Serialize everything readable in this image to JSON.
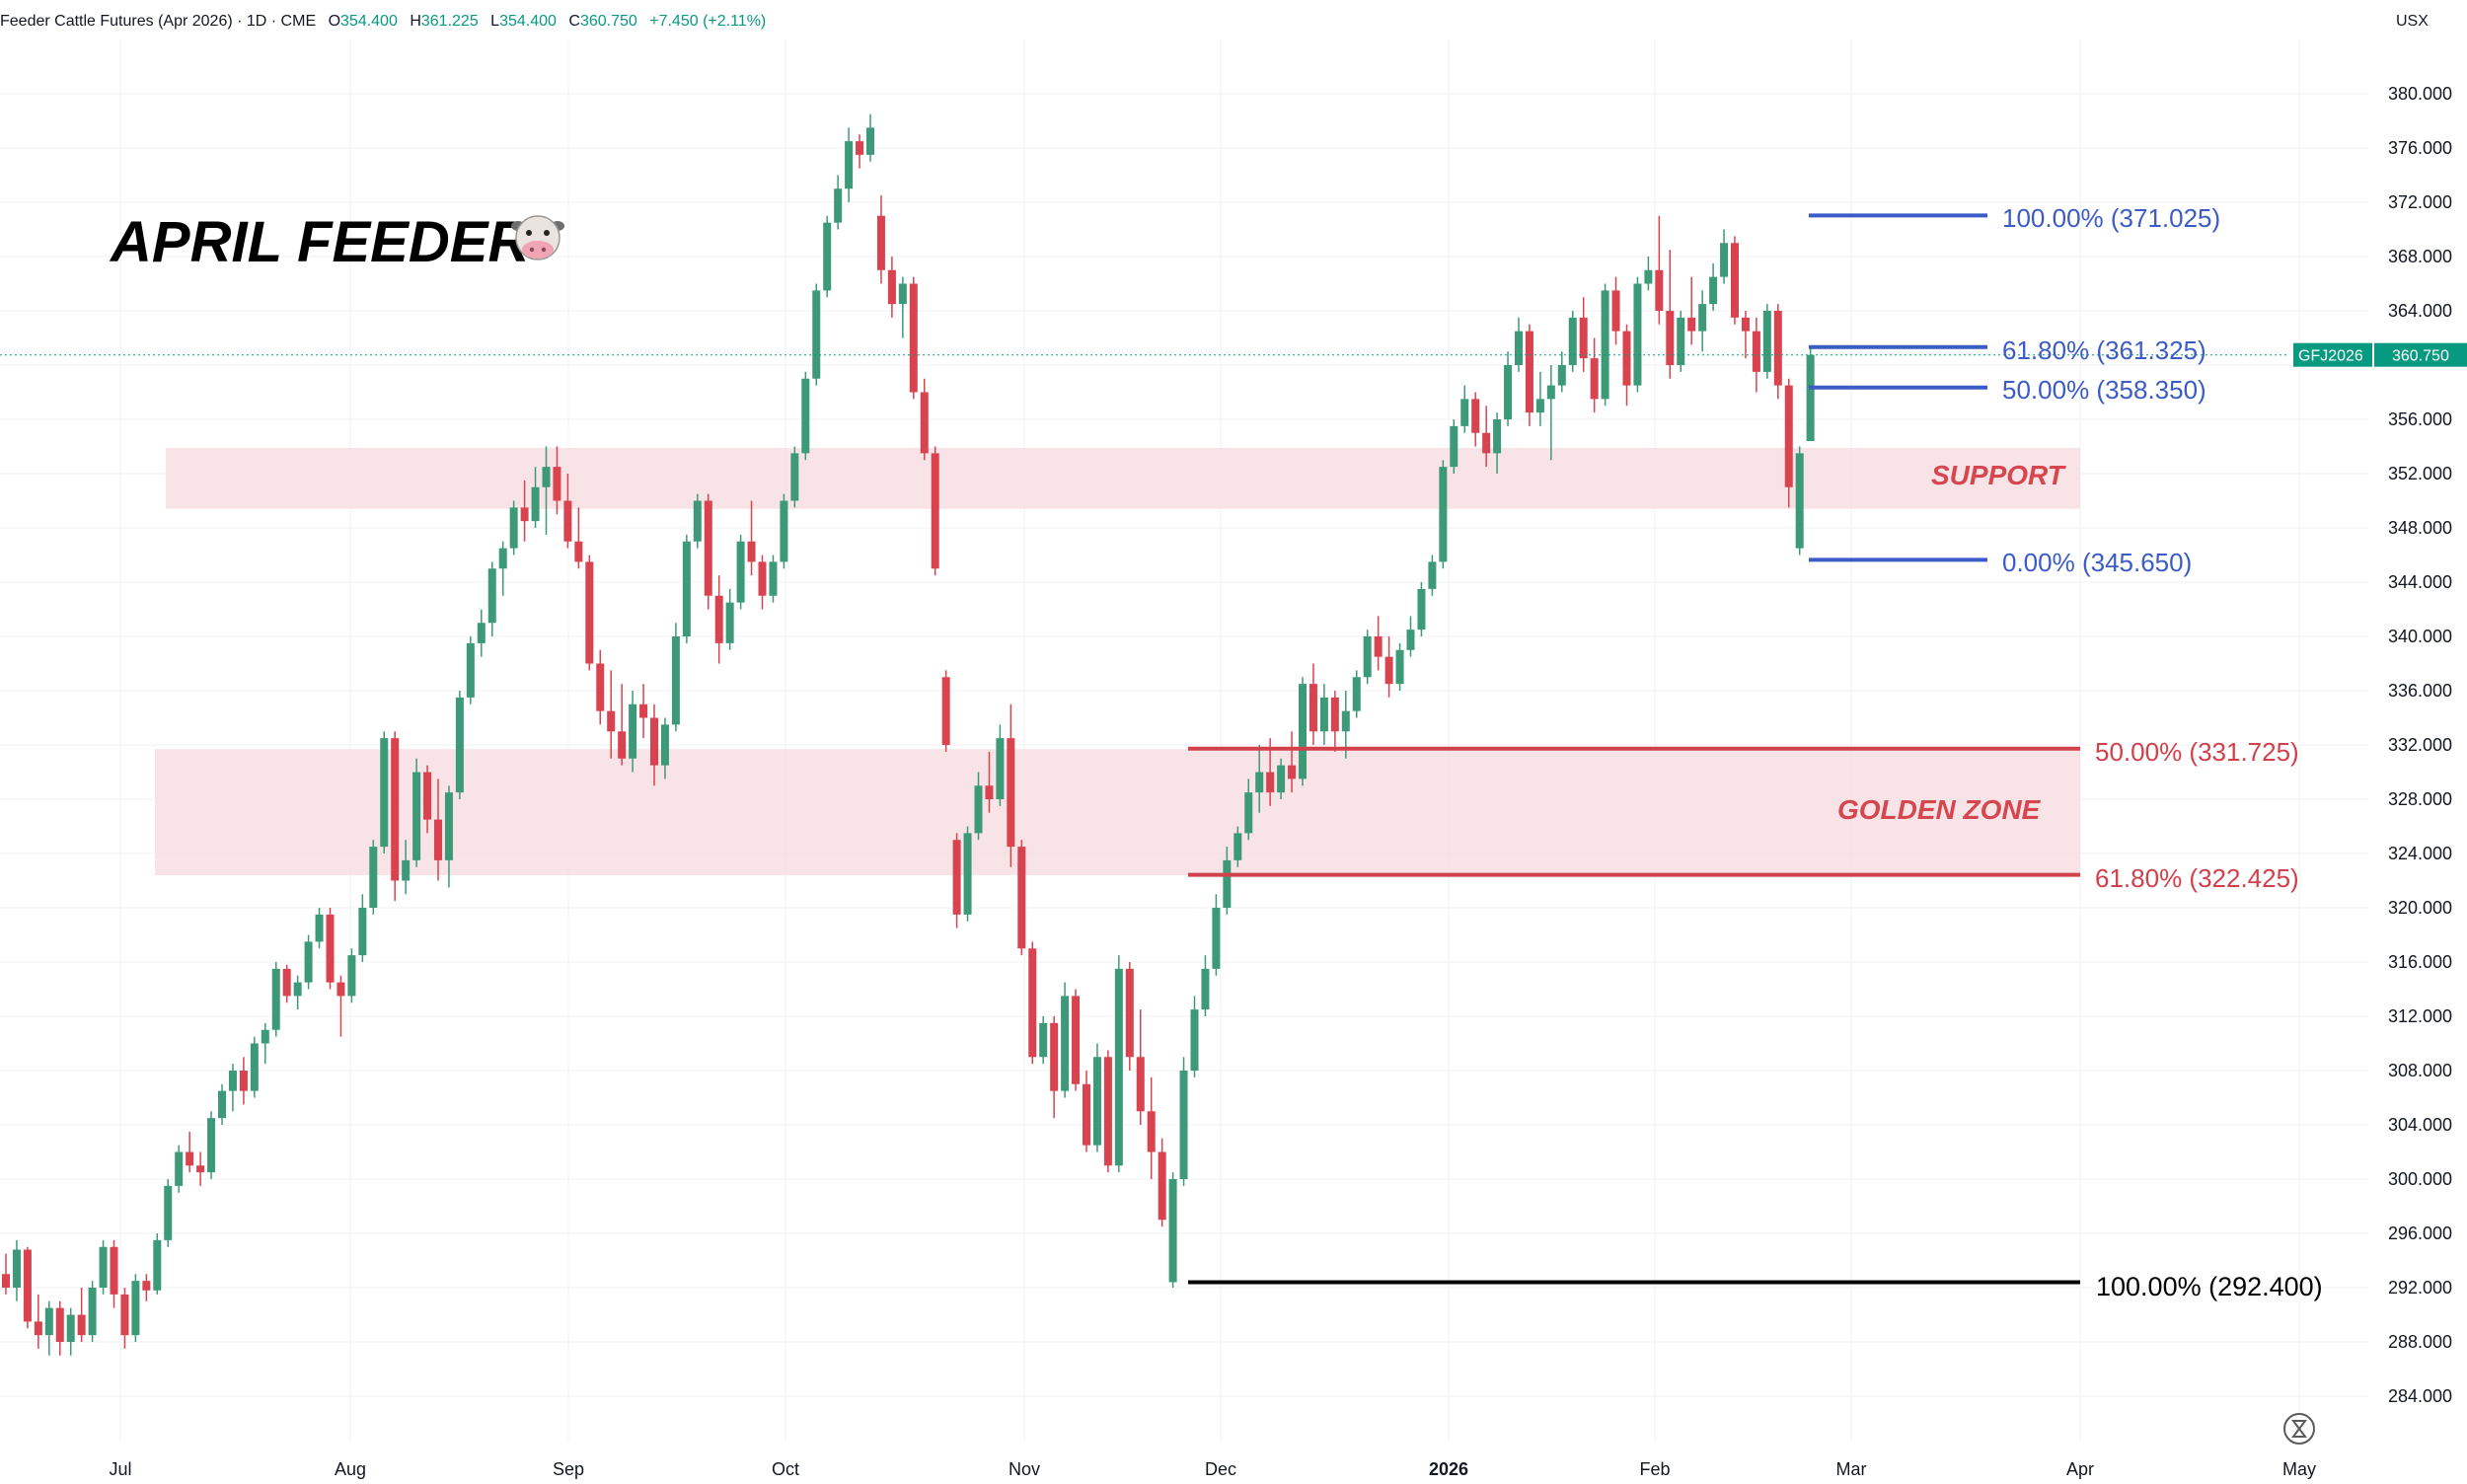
{
  "header": {
    "symbol_title": "Feeder Cattle Futures (Apr 2026) · 1D · CME",
    "o_label": "O",
    "o_value": "354.400",
    "h_label": "H",
    "h_value": "361.225",
    "l_label": "L",
    "l_value": "354.400",
    "c_label": "C",
    "c_value": "360.750",
    "change": "+7.450 (+2.11%)",
    "currency": "USX"
  },
  "title": "APRIL FEEDER",
  "title_emoji": "🐮",
  "price_badge": {
    "symbol": "GFJ2026",
    "value": "360.750",
    "price": 360.75
  },
  "colors": {
    "up": "#3c9a78",
    "down": "#d9434f",
    "fib_blue": "#3b5bc7",
    "fib_red": "#d1414b",
    "zone_fill": "#f7dfe2",
    "badge": "#089981"
  },
  "zones": {
    "support_label": "SUPPORT",
    "golden_label": "GOLDEN ZONE"
  },
  "fib_labels": {
    "b100": "100.00% (371.025)",
    "b618": "61.80% (361.325)",
    "b50": "50.00% (358.350)",
    "b0": "0.00% (345.650)",
    "r50": "50.00% (331.725)",
    "r618": "61.80% (322.425)",
    "k100": "100.00% (292.400)"
  },
  "chart_data": {
    "type": "candlestick",
    "title": "Feeder Cattle Futures (Apr 2026)",
    "ylim": [
      282,
      384
    ],
    "y_ticks": [
      "284.000",
      "288.000",
      "292.000",
      "296.000",
      "300.000",
      "304.000",
      "308.000",
      "312.000",
      "316.000",
      "320.000",
      "324.000",
      "328.000",
      "332.000",
      "336.000",
      "340.000",
      "344.000",
      "348.000",
      "352.000",
      "356.000",
      "364.000",
      "368.000",
      "372.000",
      "376.000",
      "380.000"
    ],
    "x_ticks": [
      "Jul",
      "Aug",
      "Sep",
      "Oct",
      "Nov",
      "Dec",
      "2026",
      "Feb",
      "Mar",
      "Apr",
      "May"
    ],
    "zones": [
      {
        "name": "SUPPORT",
        "from": 349.4,
        "to": 353.9
      },
      {
        "name": "GOLDEN ZONE",
        "from": 322.4,
        "to": 331.7
      }
    ],
    "fib_levels": [
      {
        "label": "100.00% (371.025)",
        "value": 371.025
      },
      {
        "label": "61.80% (361.325)",
        "value": 361.325
      },
      {
        "label": "50.00% (358.350)",
        "value": 358.35
      },
      {
        "label": "0.00% (345.650)",
        "value": 345.65
      },
      {
        "label": "50.00% (331.725)",
        "value": 331.725
      },
      {
        "label": "61.80% (322.425)",
        "value": 322.425
      },
      {
        "label": "100.00% (292.400)",
        "value": 292.4
      }
    ],
    "last_close": 360.75,
    "candles": [
      [
        293.0,
        294.5,
        291.5,
        292.0
      ],
      [
        292.0,
        295.5,
        291.0,
        294.8
      ],
      [
        294.8,
        295.0,
        289.0,
        289.5
      ],
      [
        289.5,
        291.5,
        287.5,
        288.5
      ],
      [
        288.5,
        291.0,
        287.0,
        290.5
      ],
      [
        290.5,
        291.0,
        287.0,
        288.0
      ],
      [
        288.0,
        290.5,
        287.0,
        290.0
      ],
      [
        290.0,
        292.0,
        288.0,
        288.5
      ],
      [
        288.5,
        292.5,
        288.0,
        292.0
      ],
      [
        292.0,
        295.5,
        291.5,
        295.0
      ],
      [
        295.0,
        295.5,
        290.5,
        291.5
      ],
      [
        291.5,
        292.0,
        287.5,
        288.5
      ],
      [
        288.5,
        293.0,
        288.0,
        292.5
      ],
      [
        292.5,
        293.0,
        291.0,
        291.8
      ],
      [
        291.8,
        296.0,
        291.5,
        295.5
      ],
      [
        295.5,
        300.0,
        295.0,
        299.5
      ],
      [
        299.5,
        302.5,
        299.0,
        302.0
      ],
      [
        302.0,
        303.5,
        300.5,
        301.0
      ],
      [
        301.0,
        302.0,
        299.5,
        300.5
      ],
      [
        300.5,
        305.0,
        300.0,
        304.5
      ],
      [
        304.5,
        307.0,
        304.0,
        306.5
      ],
      [
        306.5,
        308.5,
        305.0,
        308.0
      ],
      [
        308.0,
        309.0,
        305.5,
        306.5
      ],
      [
        306.5,
        310.5,
        306.0,
        310.0
      ],
      [
        310.0,
        311.5,
        308.5,
        311.0
      ],
      [
        311.0,
        316.0,
        310.5,
        315.5
      ],
      [
        315.5,
        315.8,
        313.0,
        313.5
      ],
      [
        313.5,
        315.0,
        312.5,
        314.5
      ],
      [
        314.5,
        318.0,
        314.0,
        317.5
      ],
      [
        317.5,
        320.0,
        317.0,
        319.5
      ],
      [
        319.5,
        320.0,
        314.0,
        314.5
      ],
      [
        314.5,
        315.0,
        310.5,
        313.5
      ],
      [
        313.5,
        317.0,
        313.0,
        316.5
      ],
      [
        316.5,
        321.0,
        316.0,
        320.0
      ],
      [
        320.0,
        325.0,
        319.5,
        324.5
      ],
      [
        324.5,
        333.0,
        324.0,
        332.5
      ],
      [
        332.5,
        333.0,
        320.5,
        322.0
      ],
      [
        322.0,
        325.0,
        321.0,
        323.5
      ],
      [
        323.5,
        331.0,
        323.0,
        330.0
      ],
      [
        330.0,
        330.5,
        325.5,
        326.5
      ],
      [
        326.5,
        329.5,
        322.0,
        323.5
      ],
      [
        323.5,
        329.0,
        321.5,
        328.5
      ],
      [
        328.5,
        336.0,
        328.0,
        335.5
      ],
      [
        335.5,
        340.0,
        335.0,
        339.5
      ],
      [
        339.5,
        342.0,
        338.5,
        341.0
      ],
      [
        341.0,
        345.5,
        340.0,
        345.0
      ],
      [
        345.0,
        347.0,
        343.0,
        346.5
      ],
      [
        346.5,
        350.0,
        346.0,
        349.5
      ],
      [
        349.5,
        351.5,
        347.0,
        348.5
      ],
      [
        348.5,
        352.5,
        348.0,
        351.0
      ],
      [
        351.0,
        354.0,
        347.5,
        352.5
      ],
      [
        352.5,
        354.0,
        349.0,
        350.0
      ],
      [
        350.0,
        352.0,
        346.5,
        347.0
      ],
      [
        347.0,
        349.5,
        345.0,
        345.5
      ],
      [
        345.5,
        346.0,
        337.5,
        338.0
      ],
      [
        338.0,
        339.0,
        333.5,
        334.5
      ],
      [
        334.5,
        337.5,
        331.0,
        333.0
      ],
      [
        333.0,
        336.5,
        330.5,
        331.0
      ],
      [
        331.0,
        336.0,
        330.0,
        335.0
      ],
      [
        335.0,
        336.5,
        332.5,
        334.0
      ],
      [
        334.0,
        335.0,
        329.0,
        330.5
      ],
      [
        330.5,
        334.0,
        329.5,
        333.5
      ],
      [
        333.5,
        341.0,
        333.0,
        340.0
      ],
      [
        340.0,
        347.5,
        339.5,
        347.0
      ],
      [
        347.0,
        350.5,
        346.5,
        350.0
      ],
      [
        350.0,
        350.5,
        342.0,
        343.0
      ],
      [
        343.0,
        344.5,
        338.0,
        339.5
      ],
      [
        339.5,
        343.5,
        339.0,
        342.5
      ],
      [
        342.5,
        347.5,
        342.0,
        347.0
      ],
      [
        347.0,
        350.0,
        344.5,
        345.5
      ],
      [
        345.5,
        346.0,
        342.0,
        343.0
      ],
      [
        343.0,
        346.0,
        342.5,
        345.5
      ],
      [
        345.5,
        350.5,
        345.0,
        350.0
      ],
      [
        350.0,
        354.0,
        349.5,
        353.5
      ],
      [
        353.5,
        359.5,
        353.0,
        359.0
      ],
      [
        359.0,
        366.0,
        358.5,
        365.5
      ],
      [
        365.5,
        371.0,
        365.0,
        370.5
      ],
      [
        370.5,
        374.0,
        370.0,
        373.0
      ],
      [
        373.0,
        377.5,
        372.0,
        376.5
      ],
      [
        376.5,
        377.0,
        374.5,
        375.5
      ],
      [
        375.5,
        378.5,
        375.0,
        377.5
      ],
      [
        371.0,
        372.5,
        366.0,
        367.0
      ],
      [
        367.0,
        368.0,
        363.5,
        364.5
      ],
      [
        364.5,
        366.5,
        362.0,
        366.0
      ],
      [
        366.0,
        366.5,
        357.5,
        358.0
      ],
      [
        358.0,
        359.0,
        353.0,
        353.5
      ],
      [
        353.5,
        354.0,
        344.5,
        345.0
      ],
      [
        337.0,
        337.5,
        331.5,
        332.0
      ],
      [
        325.0,
        325.5,
        318.5,
        319.5
      ],
      [
        319.5,
        326.0,
        319.0,
        325.5
      ],
      [
        325.5,
        330.0,
        325.0,
        329.0
      ],
      [
        329.0,
        331.5,
        327.0,
        328.0
      ],
      [
        328.0,
        333.5,
        327.5,
        332.5
      ],
      [
        332.5,
        335.0,
        323.0,
        324.5
      ],
      [
        324.5,
        325.0,
        316.5,
        317.0
      ],
      [
        317.0,
        317.5,
        308.5,
        309.0
      ],
      [
        309.0,
        312.0,
        308.5,
        311.5
      ],
      [
        311.5,
        312.0,
        304.5,
        306.5
      ],
      [
        306.5,
        314.5,
        306.0,
        313.5
      ],
      [
        313.5,
        314.0,
        306.5,
        307.0
      ],
      [
        307.0,
        308.0,
        302.0,
        302.5
      ],
      [
        302.5,
        310.0,
        302.0,
        309.0
      ],
      [
        309.0,
        309.5,
        300.5,
        301.0
      ],
      [
        301.0,
        316.5,
        300.5,
        315.5
      ],
      [
        315.5,
        316.0,
        308.0,
        309.0
      ],
      [
        309.0,
        312.5,
        304.0,
        305.0
      ],
      [
        305.0,
        307.5,
        300.0,
        302.0
      ],
      [
        302.0,
        303.0,
        296.5,
        297.0
      ],
      [
        292.4,
        300.5,
        292.0,
        300.0
      ],
      [
        300.0,
        309.0,
        299.5,
        308.0
      ],
      [
        308.0,
        313.5,
        307.5,
        312.5
      ],
      [
        312.5,
        316.5,
        312.0,
        315.5
      ],
      [
        315.5,
        321.0,
        315.0,
        320.0
      ],
      [
        320.0,
        324.5,
        319.5,
        323.5
      ],
      [
        323.5,
        326.0,
        323.0,
        325.5
      ],
      [
        325.5,
        329.5,
        325.0,
        328.5
      ],
      [
        328.5,
        332.0,
        327.0,
        330.0
      ],
      [
        330.0,
        332.5,
        327.5,
        328.5
      ],
      [
        328.5,
        331.0,
        328.0,
        330.5
      ],
      [
        330.5,
        333.0,
        328.5,
        329.5
      ],
      [
        329.5,
        337.0,
        329.0,
        336.5
      ],
      [
        336.5,
        338.0,
        332.0,
        333.0
      ],
      [
        333.0,
        336.5,
        332.0,
        335.5
      ],
      [
        335.5,
        336.0,
        331.5,
        333.0
      ],
      [
        333.0,
        336.0,
        331.0,
        334.5
      ],
      [
        334.5,
        337.5,
        334.0,
        337.0
      ],
      [
        337.0,
        340.5,
        336.5,
        340.0
      ],
      [
        340.0,
        341.5,
        337.5,
        338.5
      ],
      [
        338.5,
        340.0,
        335.5,
        336.5
      ],
      [
        336.5,
        339.5,
        336.0,
        339.0
      ],
      [
        339.0,
        341.5,
        338.5,
        340.5
      ],
      [
        340.5,
        344.0,
        340.0,
        343.5
      ],
      [
        343.5,
        346.0,
        343.0,
        345.5
      ],
      [
        345.5,
        353.0,
        345.0,
        352.5
      ],
      [
        352.5,
        356.0,
        352.0,
        355.5
      ],
      [
        355.5,
        358.5,
        355.0,
        357.5
      ],
      [
        357.5,
        358.0,
        354.0,
        355.0
      ],
      [
        355.0,
        357.0,
        352.5,
        353.5
      ],
      [
        353.5,
        356.5,
        352.0,
        356.0
      ],
      [
        356.0,
        361.0,
        355.5,
        360.0
      ],
      [
        360.0,
        363.5,
        359.5,
        362.5
      ],
      [
        362.5,
        363.0,
        355.5,
        356.5
      ],
      [
        356.5,
        359.5,
        355.5,
        357.5
      ],
      [
        357.5,
        360.0,
        353.0,
        358.5
      ],
      [
        358.5,
        361.0,
        358.0,
        360.0
      ],
      [
        360.0,
        364.0,
        359.5,
        363.5
      ],
      [
        363.5,
        365.0,
        359.5,
        360.5
      ],
      [
        360.5,
        362.0,
        356.5,
        357.5
      ],
      [
        357.5,
        366.0,
        357.0,
        365.5
      ],
      [
        365.5,
        366.5,
        361.5,
        362.5
      ],
      [
        362.5,
        363.0,
        357.0,
        358.5
      ],
      [
        358.5,
        366.5,
        358.0,
        366.0
      ],
      [
        366.0,
        368.0,
        365.5,
        367.0
      ],
      [
        367.0,
        371.0,
        363.0,
        364.0
      ],
      [
        364.0,
        368.5,
        359.0,
        360.0
      ],
      [
        360.0,
        364.0,
        359.5,
        363.5
      ],
      [
        363.5,
        366.5,
        361.5,
        362.5
      ],
      [
        362.5,
        365.5,
        361.0,
        364.5
      ],
      [
        364.5,
        367.5,
        364.0,
        366.5
      ],
      [
        366.5,
        370.0,
        366.0,
        369.0
      ],
      [
        369.0,
        369.5,
        363.0,
        363.5
      ],
      [
        363.5,
        364.0,
        360.5,
        362.5
      ],
      [
        362.5,
        363.5,
        358.0,
        359.5
      ],
      [
        359.5,
        364.5,
        359.0,
        364.0
      ],
      [
        364.0,
        364.5,
        357.5,
        358.5
      ],
      [
        358.5,
        359.0,
        349.5,
        351.0
      ],
      [
        346.5,
        354.0,
        346.0,
        353.5
      ],
      [
        354.4,
        361.2,
        354.4,
        360.75
      ]
    ]
  }
}
